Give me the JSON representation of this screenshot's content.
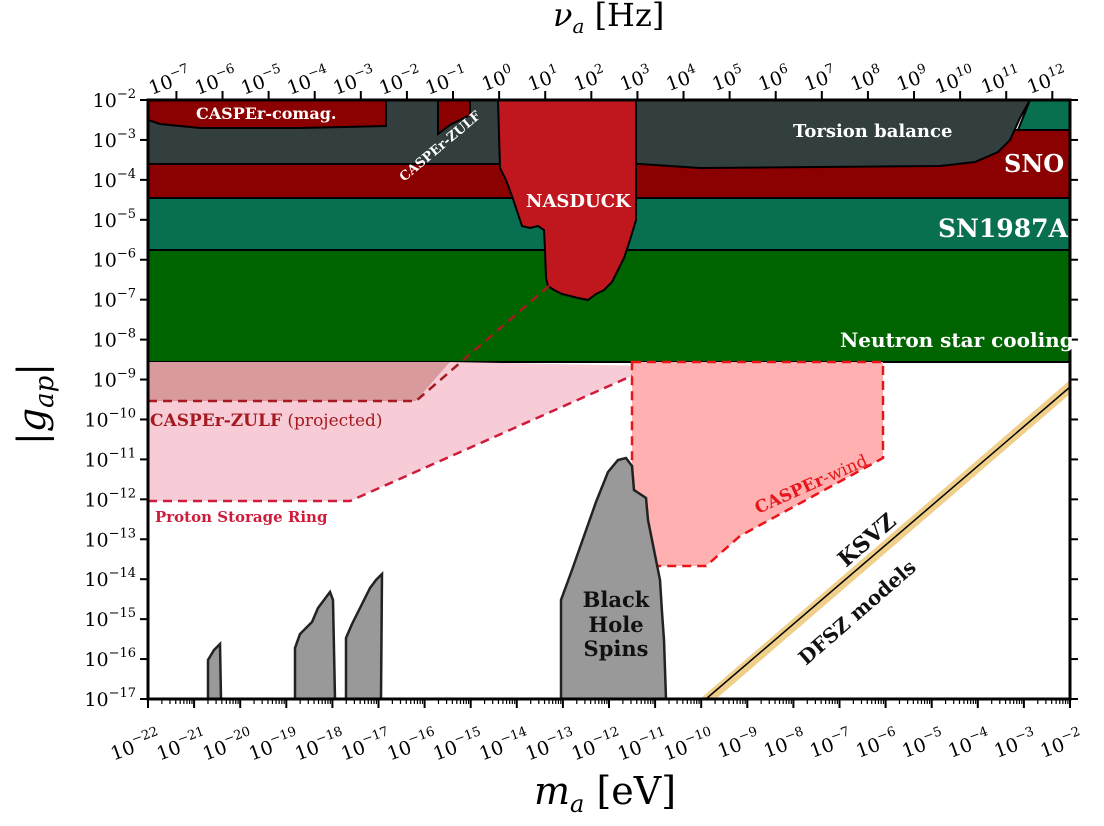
{
  "chart_data": {
    "type": "area",
    "xlabel": "m_a [eV]",
    "x2label": "ν_a [Hz]",
    "ylabel": "|g_ap|",
    "xscale": "log",
    "yscale": "log",
    "xlim": [
      1e-22,
      0.01
    ],
    "ylim": [
      1e-17,
      0.01
    ],
    "x_ticks": [
      "10^-22",
      "10^-21",
      "10^-20",
      "10^-19",
      "10^-18",
      "10^-17",
      "10^-16",
      "10^-15",
      "10^-14",
      "10^-13",
      "10^-12",
      "10^-11",
      "10^-10",
      "10^-9",
      "10^-8",
      "10^-7",
      "10^-6",
      "10^-5",
      "10^-4",
      "10^-3",
      "10^-2"
    ],
    "y_ticks": [
      "10^-2",
      "10^-3",
      "10^-4",
      "10^-5",
      "10^-6",
      "10^-7",
      "10^-8",
      "10^-9",
      "10^-10",
      "10^-11",
      "10^-12",
      "10^-13",
      "10^-14",
      "10^-15",
      "10^-16",
      "10^-17"
    ],
    "x2_ticks": [
      "10^-7",
      "10^-6",
      "10^-5",
      "10^-4",
      "10^-3",
      "10^-2",
      "10^-1",
      "10^0",
      "10^1",
      "10^2",
      "10^3",
      "10^4",
      "10^5",
      "10^6",
      "10^7",
      "10^8",
      "10^9",
      "10^10",
      "10^11",
      "10^12"
    ],
    "regions": [
      {
        "name": "Neutron star cooling",
        "color": "#006400",
        "g_min": 3e-09,
        "g_max": 1.9e-06,
        "m_range": [
          1e-22,
          0.01
        ]
      },
      {
        "name": "SN1987A",
        "color": "#087050",
        "g_min": 1.9e-06,
        "g_max": 3.5e-05,
        "m_range": [
          1e-22,
          0.01
        ]
      },
      {
        "name": "SNO",
        "color": "#8b0000",
        "g_min": 3.5e-05,
        "g_max": 0.0002,
        "m_range": [
          1e-22,
          0.01
        ]
      },
      {
        "name": "Torsion balance",
        "color": "#333e3e",
        "g_min": 0.0002,
        "g_max": 0.01,
        "m_range": [
          1e-22,
          0.01
        ]
      },
      {
        "name": "CASPEr-comag.",
        "color": "#8b0000",
        "m_range": [
          1e-22,
          2e-17
        ],
        "g_max": 0.01
      },
      {
        "name": "CASPEr-ZULF",
        "color": "#8b0000",
        "m_range": [
          1e-16,
          2e-16
        ],
        "g_max": 0.01
      },
      {
        "name": "NASDUCK",
        "color": "#c0171f",
        "m_range": [
          4e-15,
          1e-12
        ],
        "g_min": 1.2e-07,
        "g_max": 0.01
      },
      {
        "name": "CASPEr-ZULF (projected)",
        "color": "#d99a9e",
        "m_range": [
          1e-22,
          1e-12
        ],
        "g_min": 3e-10,
        "g_max": 3e-09
      },
      {
        "name": "Proton Storage Ring",
        "color": "#f7ccd6",
        "m_range": [
          1e-22,
          1e-12
        ],
        "g_min": 1e-12,
        "g_max": 3e-09
      },
      {
        "name": "CASPEr-wind",
        "color": "#ffb0b0",
        "m_range": [
          5e-12,
          1e-06
        ],
        "g_min": 2e-14,
        "g_max": 3e-09
      },
      {
        "name": "Black Hole Spins",
        "color": "#999999",
        "m_range": [
          1e-21,
          1e-11
        ],
        "g_peak": 1e-11
      }
    ],
    "models": [
      "KSVZ",
      "DFSZ models"
    ]
  },
  "labels": {
    "caspercomag": "CASPEr-comag.",
    "casperzulf": "CASPEr-ZULF",
    "torsion": "Torsion balance",
    "sno": "SNO",
    "nasduck": "NASDUCK",
    "sn1987a": "SN1987A",
    "nscooling": "Neutron star cooling",
    "zulfproj": "CASPEr-ZULF",
    "zulfproj_suffix": "(projected)",
    "psr": "Proton Storage Ring",
    "casperwind_a": "CASPEr",
    "casperwind_b": "-wind",
    "ksvz": "KSVZ",
    "dfsz": "DFSZ models",
    "bh1": "Black",
    "bh2": "Hole",
    "bh3": "Spins"
  }
}
